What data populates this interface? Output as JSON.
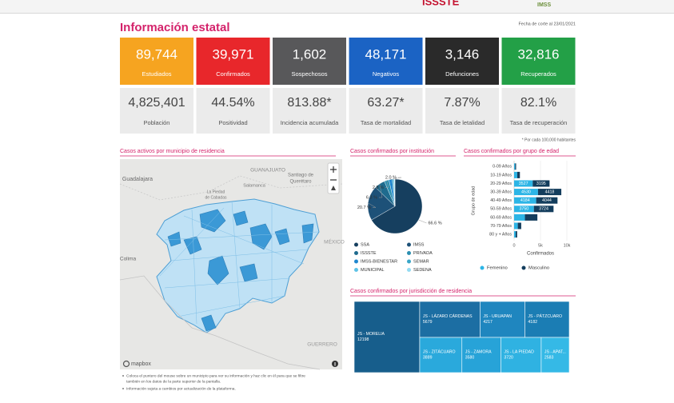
{
  "nav": {
    "items": [
      "ISSSTE",
      "IMSS"
    ]
  },
  "header": {
    "title": "Información estatal",
    "date": "Fecha de corte al 23/01/2021"
  },
  "summary_cards": [
    {
      "value": "89,744",
      "label": "Estudiados",
      "color": "#f6a420"
    },
    {
      "value": "39,971",
      "label": "Confirmados",
      "color": "#e8272b"
    },
    {
      "value": "1,602",
      "label": "Sospechosos",
      "color": "#58585a"
    },
    {
      "value": "48,171",
      "label": "Negativos",
      "color": "#1b63c4"
    },
    {
      "value": "3,146",
      "label": "Defunciones",
      "color": "#2a2a2a"
    },
    {
      "value": "32,816",
      "label": "Recuperados",
      "color": "#23a047"
    }
  ],
  "indicator_cards": [
    {
      "value": "4,825,401",
      "label": "Población"
    },
    {
      "value": "44.54%",
      "label": "Positividad"
    },
    {
      "value": "813.88*",
      "label": "Incidencia acumulada"
    },
    {
      "value": "63.27*",
      "label": "Tasa de mortalidad"
    },
    {
      "value": "7.87%",
      "label": "Tasa de letalidad"
    },
    {
      "value": "82.1%",
      "label": "Tasa de recuperación"
    }
  ],
  "footnote": "* Por cada 100,000 habitantes",
  "map": {
    "title": "Casos activos por municipio de residencia",
    "labels": [
      "Guadalajara",
      "GUANAJUATO",
      "Santiago de",
      "Querétaro",
      "Salamanca",
      "La Piedad",
      "de Cabadas",
      "Colima",
      "MÉXICO",
      "GUERRERO"
    ],
    "attribution": "mapbox",
    "notes": [
      "Coloca el puntero del mouse sobre un municipio para ver su información y haz clic en él para que se filtre",
      "también en los datos de la parte superior de la pantalla.",
      "Información sujeta a cambios por actualización de la plataforma."
    ]
  },
  "chart_data": [
    {
      "type": "pie",
      "title": "Casos confirmados por institución",
      "categories": [
        "SSA",
        "IMSS",
        "ISSSTE",
        "PRIVADA",
        "IMSS-BIENESTAR",
        "SEMAR",
        "MUNICIPAL",
        "SEDENA"
      ],
      "values": [
        66.6,
        20.7,
        6.3,
        2.8,
        2.0,
        0.8,
        0.5,
        0.3
      ],
      "value_labels": [
        "66.6 %",
        "20.7 %",
        "6.3 %",
        "2.8 %",
        "2.0 %",
        null,
        null,
        null
      ],
      "colors": [
        "#163f5f",
        "#1d5178",
        "#1f6b8e",
        "#2b8fb1",
        "#1f87cf",
        "#3aa6c8",
        "#5ec3e6",
        "#93dbf2"
      ]
    },
    {
      "type": "hbar-stacked",
      "title": "Casos confirmados por grupo de edad",
      "categories": [
        "0-09 Años",
        "10-19 Años",
        "20-29 Años",
        "30-39 Años",
        "40-49 Años",
        "50-59 Años",
        "60-69 Años",
        "70-79 Años",
        "80 y + Años"
      ],
      "series": [
        {
          "name": "Femenino",
          "color": "#2cb5e6",
          "values": [
            200,
            600,
            3527,
            4530,
            4184,
            3750,
            2050,
            700,
            300
          ]
        },
        {
          "name": "Masculino",
          "color": "#133d5d",
          "values": [
            180,
            500,
            3195,
            4418,
            4044,
            3724,
            2362,
            650,
            280
          ]
        }
      ],
      "xlim": [
        0,
        10000
      ],
      "xticks": [
        0,
        {
          "value": 5000,
          "label": "5k"
        },
        {
          "value": 10000,
          "label": "10k"
        }
      ],
      "x_label": "Confirmados",
      "y_label": "Grupo de edad"
    },
    {
      "type": "treemap",
      "title": "Casos confirmados por jurisdicción de residencia",
      "categories": [
        "JS - MORELIA",
        "JS - LÁZARO CÁRDENAS",
        "JS - URUAPAN",
        "JS - PÁTZCUARO",
        "JS - ZITÁCUARO",
        "JS - ZAMORA",
        "JS - LA PIEDAD",
        "JS - APAT..."
      ],
      "values": [
        12198,
        5679,
        4217,
        4182,
        3889,
        3580,
        3720,
        2583
      ],
      "colors": [
        "#175e8c",
        "#1c6ea3",
        "#1f86bf",
        "#1b7db4",
        "#2aa9dc",
        "#27a3d8",
        "#2fb2e2",
        "#35b9e6"
      ]
    }
  ]
}
